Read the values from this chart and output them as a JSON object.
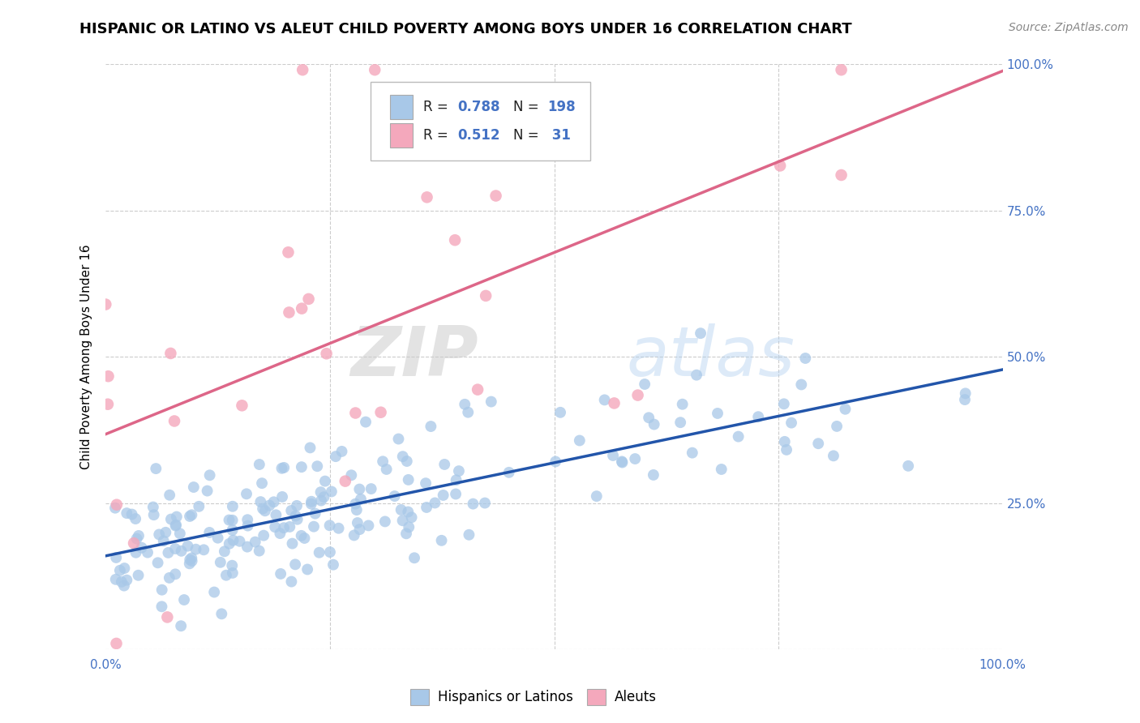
{
  "title": "HISPANIC OR LATINO VS ALEUT CHILD POVERTY AMONG BOYS UNDER 16 CORRELATION CHART",
  "source": "Source: ZipAtlas.com",
  "xlabel": "",
  "ylabel": "Child Poverty Among Boys Under 16",
  "xlim": [
    0,
    1
  ],
  "ylim": [
    0,
    1
  ],
  "x_tick_labels": [
    "0.0%",
    "100.0%"
  ],
  "y_tick_labels": [
    "",
    "25.0%",
    "50.0%",
    "75.0%",
    "100.0%"
  ],
  "y_tick_positions": [
    0,
    0.25,
    0.5,
    0.75,
    1.0
  ],
  "blue_R": "0.788",
  "blue_N": "198",
  "pink_R": "0.512",
  "pink_N": "31",
  "blue_color": "#a8c8e8",
  "pink_color": "#f4a8bc",
  "blue_line_color": "#2255aa",
  "pink_line_color": "#dd6688",
  "grid_color": "#cccccc",
  "background_color": "#ffffff",
  "legend_label_blue": "Hispanics or Latinos",
  "legend_label_pink": "Aleuts",
  "watermark_zip": "ZIP",
  "watermark_atlas": "atlas",
  "title_fontsize": 13,
  "axis_label_fontsize": 11,
  "tick_fontsize": 11,
  "source_fontsize": 10,
  "right_tick_color": "#4472c4",
  "blue_seed": 42,
  "pink_seed": 123
}
